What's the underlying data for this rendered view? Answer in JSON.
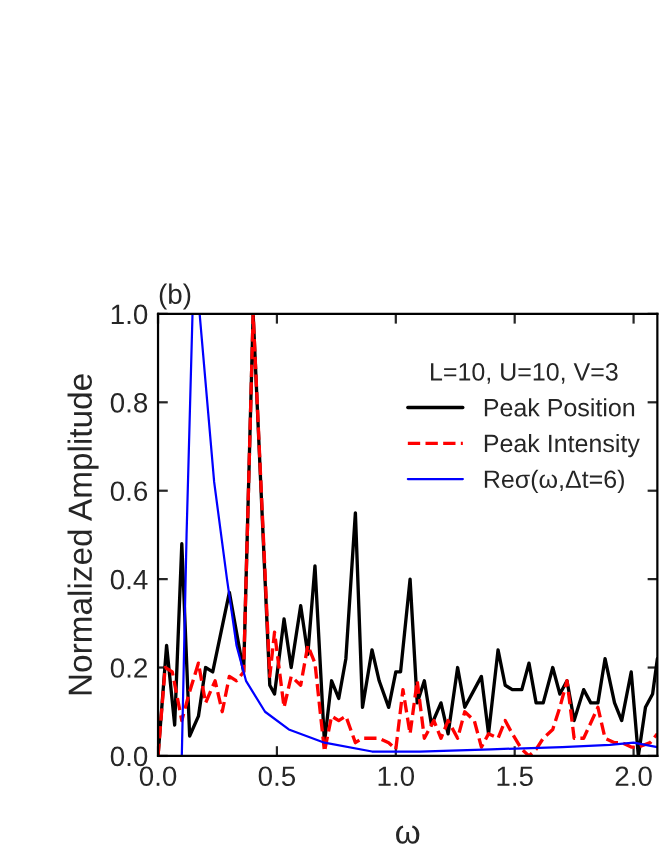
{
  "chart_data": {
    "type": "line",
    "xlabel": "ω",
    "ylabel": "Normalized Amplitude",
    "annotations": [
      "(b)"
    ],
    "legend_title": "L=10, U=10, V=3",
    "legend": "top right",
    "grid": false,
    "xlim": [
      0,
      2.1
    ],
    "xticks": [
      {
        "value": 0,
        "label": "0.0"
      },
      0.5,
      {
        "value": 1,
        "label": "1.0"
      },
      1.5,
      {
        "value": 2,
        "label": "2.0"
      }
    ],
    "ylim": [
      0,
      1.0
    ],
    "yticks": [
      {
        "value": 0,
        "label": "0.0"
      },
      0.2,
      0.4,
      0.6,
      0.8,
      {
        "value": 1,
        "label": "1.0"
      }
    ],
    "series": [
      {
        "name": "Peak Position",
        "color": "#000000",
        "line_style": "solid",
        "x": [
          0,
          0.036,
          0.07,
          0.1,
          0.133,
          0.17,
          0.2,
          0.23,
          0.3,
          0.36,
          0.4,
          0.47,
          0.49,
          0.53,
          0.56,
          0.6,
          0.63,
          0.66,
          0.7,
          0.73,
          0.76,
          0.79,
          0.83,
          0.86,
          0.9,
          0.93,
          0.97,
          1.0,
          1.02,
          1.06,
          1.09,
          1.12,
          1.15,
          1.19,
          1.22,
          1.26,
          1.29,
          1.33,
          1.36,
          1.39,
          1.43,
          1.46,
          1.49,
          1.53,
          1.56,
          1.59,
          1.62,
          1.66,
          1.69,
          1.72,
          1.75,
          1.79,
          1.82,
          1.85,
          1.88,
          1.92,
          1.95,
          1.99,
          2.02,
          2.05,
          2.08,
          2.1
        ],
        "values": [
          0,
          0.25,
          0.07,
          0.48,
          0.045,
          0.09,
          0.2,
          0.19,
          0.37,
          0.19,
          1.0,
          0.16,
          0.14,
          0.31,
          0.2,
          0.34,
          0.23,
          0.43,
          0.03,
          0.17,
          0.13,
          0.22,
          0.55,
          0.11,
          0.24,
          0.17,
          0.11,
          0.19,
          0.19,
          0.4,
          0.12,
          0.17,
          0.07,
          0.12,
          0.05,
          0.2,
          0.11,
          0.15,
          0.18,
          0.05,
          0.24,
          0.16,
          0.15,
          0.15,
          0.21,
          0.12,
          0.12,
          0.2,
          0.14,
          0.17,
          0.08,
          0.15,
          0.12,
          0.12,
          0.22,
          0.12,
          0.08,
          0.19,
          0.0,
          0.11,
          0.14,
          0.22
        ]
      },
      {
        "name": "Peak Intensity",
        "color": "#ff0000",
        "line_style": "dashed",
        "x": [
          0,
          0.03,
          0.06,
          0.1,
          0.13,
          0.17,
          0.2,
          0.24,
          0.27,
          0.3,
          0.33,
          0.36,
          0.4,
          0.47,
          0.49,
          0.53,
          0.56,
          0.6,
          0.63,
          0.66,
          0.7,
          0.73,
          0.76,
          0.79,
          0.83,
          0.86,
          0.9,
          0.93,
          0.97,
          1.0,
          1.03,
          1.06,
          1.09,
          1.12,
          1.16,
          1.19,
          1.22,
          1.26,
          1.29,
          1.33,
          1.36,
          1.39,
          1.43,
          1.46,
          1.49,
          1.53,
          1.56,
          1.59,
          1.62,
          1.66,
          1.69,
          1.72,
          1.75,
          1.79,
          1.85,
          1.88,
          1.92,
          1.95,
          1.99,
          2.02,
          2.07,
          2.1
        ],
        "values": [
          0,
          0.2,
          0.19,
          0.08,
          0.14,
          0.21,
          0.12,
          0.17,
          0.1,
          0.18,
          0.17,
          0.19,
          1.0,
          0.18,
          0.28,
          0.11,
          0.18,
          0.16,
          0.25,
          0.21,
          0.01,
          0.09,
          0.08,
          0.09,
          0.03,
          0.04,
          0.04,
          0.04,
          0.03,
          0.015,
          0.15,
          0.05,
          0.17,
          0.04,
          0.08,
          0.04,
          0.08,
          0.04,
          0.1,
          0.08,
          0.02,
          0.05,
          0.04,
          0.08,
          0.05,
          0.015,
          0.0,
          0.015,
          0.04,
          0.06,
          0.11,
          0.17,
          0.04,
          0.04,
          0.11,
          0.04,
          0.03,
          0.03,
          0.02,
          0.02,
          0.03,
          0.05
        ]
      },
      {
        "name": "Reσ(ω,Δt=6)",
        "color": "#0000ff",
        "line_style": "solid",
        "x": [
          0.1,
          0.12,
          0.145,
          0.175,
          0.236,
          0.29,
          0.33,
          0.37,
          0.45,
          0.55,
          0.7,
          0.9,
          1.1,
          1.4,
          1.7,
          1.9,
          2.0,
          2.1
        ],
        "values": [
          0,
          0.5,
          1.0,
          1.0,
          0.62,
          0.4,
          0.25,
          0.17,
          0.1,
          0.06,
          0.03,
          0.01,
          0.01,
          0.015,
          0.02,
          0.025,
          0.03,
          0.02
        ]
      }
    ]
  }
}
